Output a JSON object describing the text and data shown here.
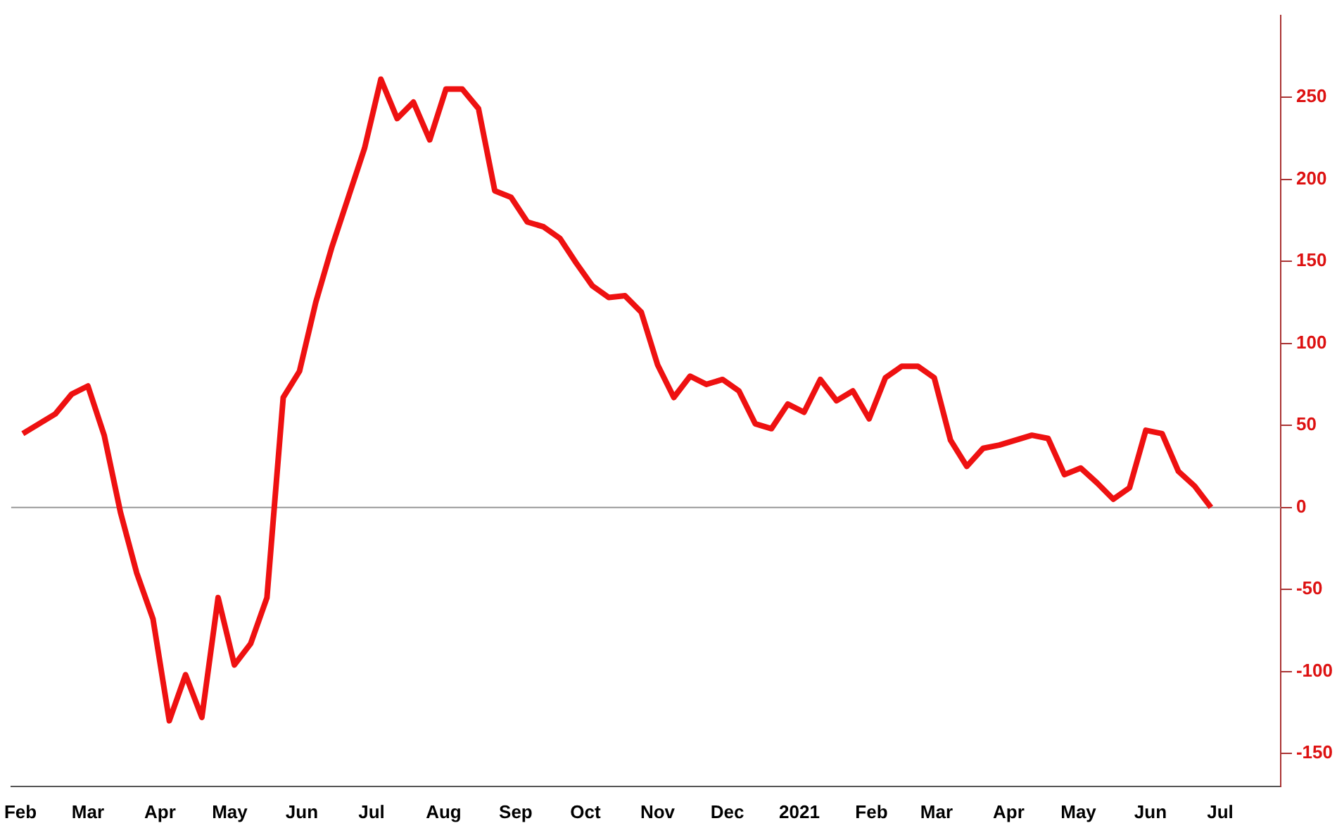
{
  "chart_data": {
    "type": "line",
    "x": [
      "2020-02-02",
      "2020-02-09",
      "2020-02-16",
      "2020-02-23",
      "2020-03-01",
      "2020-03-08",
      "2020-03-15",
      "2020-03-22",
      "2020-03-29",
      "2020-04-05",
      "2020-04-12",
      "2020-04-19",
      "2020-04-26",
      "2020-05-03",
      "2020-05-10",
      "2020-05-17",
      "2020-05-24",
      "2020-05-31",
      "2020-06-07",
      "2020-06-14",
      "2020-06-21",
      "2020-06-28",
      "2020-07-05",
      "2020-07-12",
      "2020-07-19",
      "2020-07-26",
      "2020-08-02",
      "2020-08-09",
      "2020-08-16",
      "2020-08-23",
      "2020-08-30",
      "2020-09-06",
      "2020-09-13",
      "2020-09-20",
      "2020-09-27",
      "2020-10-04",
      "2020-10-11",
      "2020-10-18",
      "2020-10-25",
      "2020-11-01",
      "2020-11-08",
      "2020-11-15",
      "2020-11-22",
      "2020-11-29",
      "2020-12-06",
      "2020-12-13",
      "2020-12-20",
      "2020-12-27",
      "2021-01-03",
      "2021-01-10",
      "2021-01-17",
      "2021-01-24",
      "2021-01-31",
      "2021-02-07",
      "2021-02-14",
      "2021-02-21",
      "2021-02-28",
      "2021-03-07",
      "2021-03-14",
      "2021-03-21",
      "2021-03-28",
      "2021-04-04",
      "2021-04-11",
      "2021-04-18",
      "2021-04-25",
      "2021-05-02",
      "2021-05-09",
      "2021-05-16",
      "2021-05-23",
      "2021-05-30",
      "2021-06-06",
      "2021-06-13",
      "2021-06-20",
      "2021-06-27"
    ],
    "series": [
      {
        "color": "#ee1111",
        "values": [
          45,
          51,
          57,
          69,
          74,
          44,
          -3,
          -40,
          -68,
          -130,
          -102,
          -128,
          -55,
          -96,
          -83,
          -55,
          67,
          83,
          125,
          159,
          189,
          219,
          261,
          237,
          247,
          224,
          255,
          255,
          243,
          193,
          189,
          174,
          171,
          164,
          149,
          135,
          128,
          129,
          119,
          87,
          67,
          80,
          75,
          78,
          71,
          51,
          48,
          63,
          58,
          78,
          65,
          71,
          54,
          79,
          86,
          86,
          79,
          41,
          25,
          36,
          38,
          41,
          44,
          42,
          20,
          24,
          15,
          5,
          12,
          47,
          45,
          22,
          13,
          0
        ]
      }
    ],
    "xlim": [
      "2020-01-28",
      "2021-07-27"
    ],
    "xticks": [
      {
        "value": "2020-02-01",
        "label": "Feb"
      },
      {
        "value": "2020-03-01",
        "label": "Mar"
      },
      {
        "value": "2020-04-01",
        "label": "Apr"
      },
      {
        "value": "2020-05-01",
        "label": "May"
      },
      {
        "value": "2020-06-01",
        "label": "Jun"
      },
      {
        "value": "2020-07-01",
        "label": "Jul"
      },
      {
        "value": "2020-08-01",
        "label": "Aug"
      },
      {
        "value": "2020-09-01",
        "label": "Sep"
      },
      {
        "value": "2020-10-01",
        "label": "Oct"
      },
      {
        "value": "2020-11-01",
        "label": "Nov"
      },
      {
        "value": "2020-12-01",
        "label": "Dec"
      },
      {
        "value": "2021-01-01",
        "label": "2021"
      },
      {
        "value": "2021-02-01",
        "label": "Feb"
      },
      {
        "value": "2021-03-01",
        "label": "Mar"
      },
      {
        "value": "2021-04-01",
        "label": "Apr"
      },
      {
        "value": "2021-05-01",
        "label": "May"
      },
      {
        "value": "2021-06-01",
        "label": "Jun"
      },
      {
        "value": "2021-07-01",
        "label": "Jul"
      }
    ],
    "ylim": [
      -170,
      300
    ],
    "yticks": [
      -150,
      -100,
      -50,
      0,
      50,
      100,
      150,
      200,
      250
    ],
    "ref_lines": [
      {
        "axis": "y",
        "value": 0,
        "color": "#999999"
      }
    ],
    "grid": false,
    "legend": false,
    "marker": "none",
    "line_style": "solid"
  }
}
